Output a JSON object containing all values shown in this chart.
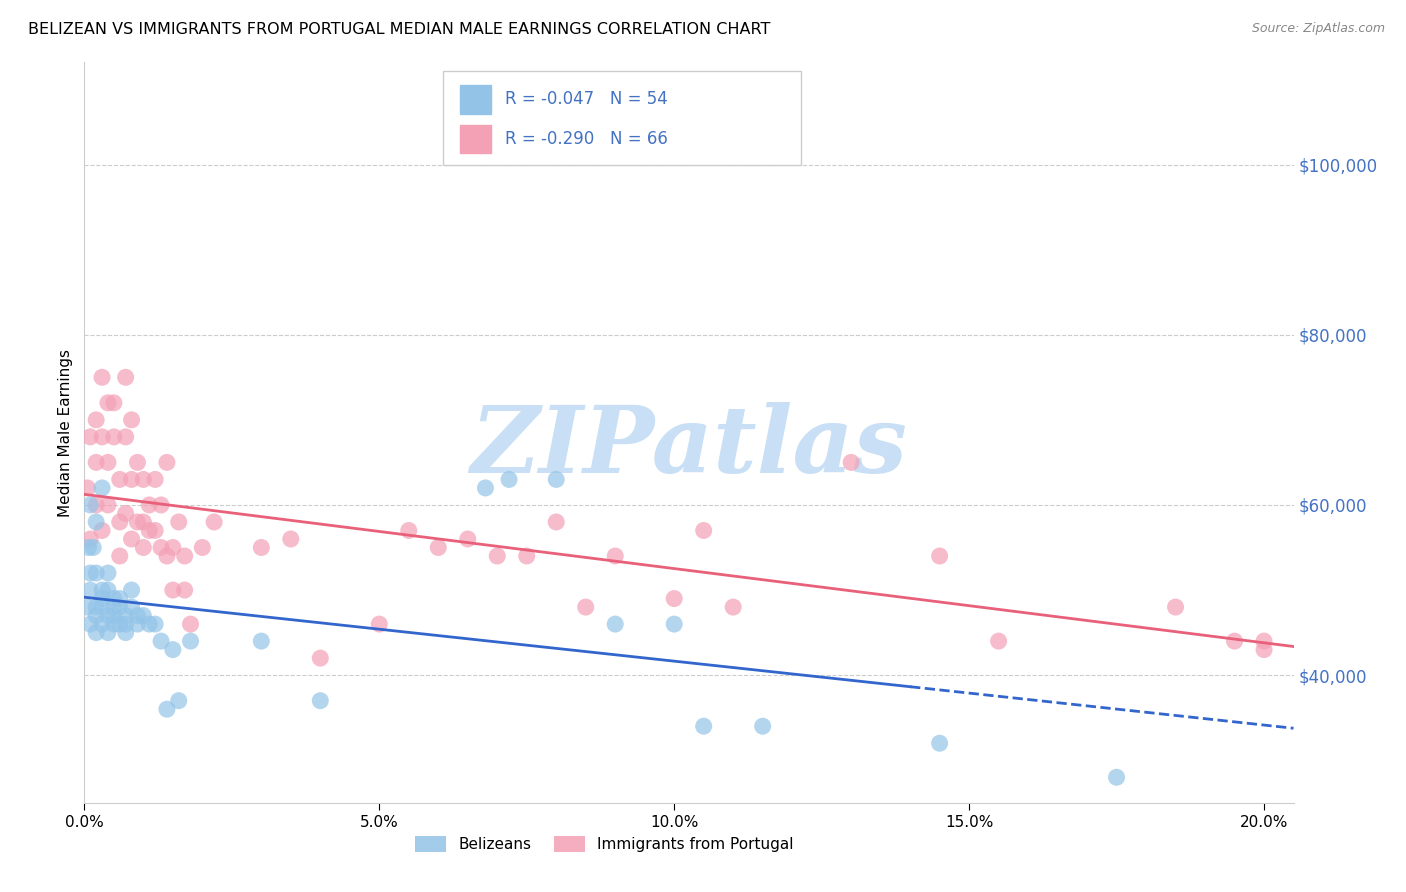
{
  "title": "BELIZEAN VS IMMIGRANTS FROM PORTUGAL MEDIAN MALE EARNINGS CORRELATION CHART",
  "source": "Source: ZipAtlas.com",
  "ylabel": "Median Male Earnings",
  "x_ticks": [
    0.0,
    0.05,
    0.1,
    0.15,
    0.2
  ],
  "x_tick_labels": [
    "0.0%",
    "5.0%",
    "10.0%",
    "15.0%",
    "20.0%"
  ],
  "y_ticks": [
    40000,
    60000,
    80000,
    100000
  ],
  "y_tick_labels": [
    "$40,000",
    "$60,000",
    "$80,000",
    "$100,000"
  ],
  "xlim": [
    0.0,
    0.205
  ],
  "ylim": [
    25000,
    112000
  ],
  "belizean_x": [
    0.0005,
    0.0007,
    0.001,
    0.001,
    0.001,
    0.001,
    0.0015,
    0.002,
    0.002,
    0.002,
    0.002,
    0.002,
    0.003,
    0.003,
    0.003,
    0.003,
    0.003,
    0.004,
    0.004,
    0.004,
    0.004,
    0.005,
    0.005,
    0.005,
    0.005,
    0.006,
    0.006,
    0.006,
    0.007,
    0.007,
    0.007,
    0.008,
    0.008,
    0.009,
    0.009,
    0.01,
    0.011,
    0.012,
    0.013,
    0.014,
    0.015,
    0.016,
    0.018,
    0.03,
    0.04,
    0.068,
    0.072,
    0.08,
    0.09,
    0.1,
    0.105,
    0.115,
    0.145,
    0.175
  ],
  "belizean_y": [
    48000,
    55000,
    52000,
    60000,
    50000,
    46000,
    55000,
    47000,
    52000,
    58000,
    45000,
    48000,
    62000,
    49000,
    46000,
    50000,
    48000,
    52000,
    47000,
    50000,
    45000,
    49000,
    47000,
    46000,
    48000,
    49000,
    46000,
    48000,
    45000,
    47000,
    46000,
    50000,
    48000,
    47000,
    46000,
    47000,
    46000,
    46000,
    44000,
    36000,
    43000,
    37000,
    44000,
    44000,
    37000,
    62000,
    63000,
    63000,
    46000,
    46000,
    34000,
    34000,
    32000,
    28000
  ],
  "portugal_x": [
    0.0005,
    0.001,
    0.001,
    0.002,
    0.002,
    0.002,
    0.003,
    0.003,
    0.003,
    0.004,
    0.004,
    0.004,
    0.005,
    0.005,
    0.006,
    0.006,
    0.006,
    0.007,
    0.007,
    0.007,
    0.008,
    0.008,
    0.008,
    0.009,
    0.009,
    0.01,
    0.01,
    0.01,
    0.011,
    0.011,
    0.012,
    0.012,
    0.013,
    0.013,
    0.014,
    0.014,
    0.015,
    0.015,
    0.016,
    0.017,
    0.017,
    0.018,
    0.02,
    0.022,
    0.03,
    0.035,
    0.04,
    0.05,
    0.055,
    0.06,
    0.065,
    0.07,
    0.075,
    0.08,
    0.085,
    0.09,
    0.1,
    0.105,
    0.11,
    0.13,
    0.145,
    0.155,
    0.185,
    0.195,
    0.2,
    0.2
  ],
  "portugal_y": [
    62000,
    68000,
    56000,
    70000,
    65000,
    60000,
    75000,
    68000,
    57000,
    72000,
    65000,
    60000,
    72000,
    68000,
    63000,
    58000,
    54000,
    75000,
    68000,
    59000,
    70000,
    63000,
    56000,
    65000,
    58000,
    63000,
    58000,
    55000,
    60000,
    57000,
    63000,
    57000,
    60000,
    55000,
    65000,
    54000,
    55000,
    50000,
    58000,
    54000,
    50000,
    46000,
    55000,
    58000,
    55000,
    56000,
    42000,
    46000,
    57000,
    55000,
    56000,
    54000,
    54000,
    58000,
    48000,
    54000,
    49000,
    57000,
    48000,
    65000,
    54000,
    44000,
    48000,
    44000,
    44000,
    43000
  ],
  "belizean_color": "#93c4e8",
  "portugal_color": "#f4a0b5",
  "belizean_line_color": "#3366cc",
  "portugal_line_color": "#e8607a",
  "watermark_text": "ZIPatlas",
  "watermark_color": "#c8dff5",
  "legend_text_color": "#4472c4",
  "legend_border_color": "#cccccc",
  "background_color": "#ffffff",
  "grid_color": "#cccccc",
  "right_axis_color": "#4472c4",
  "title_fontsize": 11.5,
  "source_fontsize": 9,
  "legend_r1": "R = -0.047   N = 54",
  "legend_r2": "R = -0.290   N = 66"
}
